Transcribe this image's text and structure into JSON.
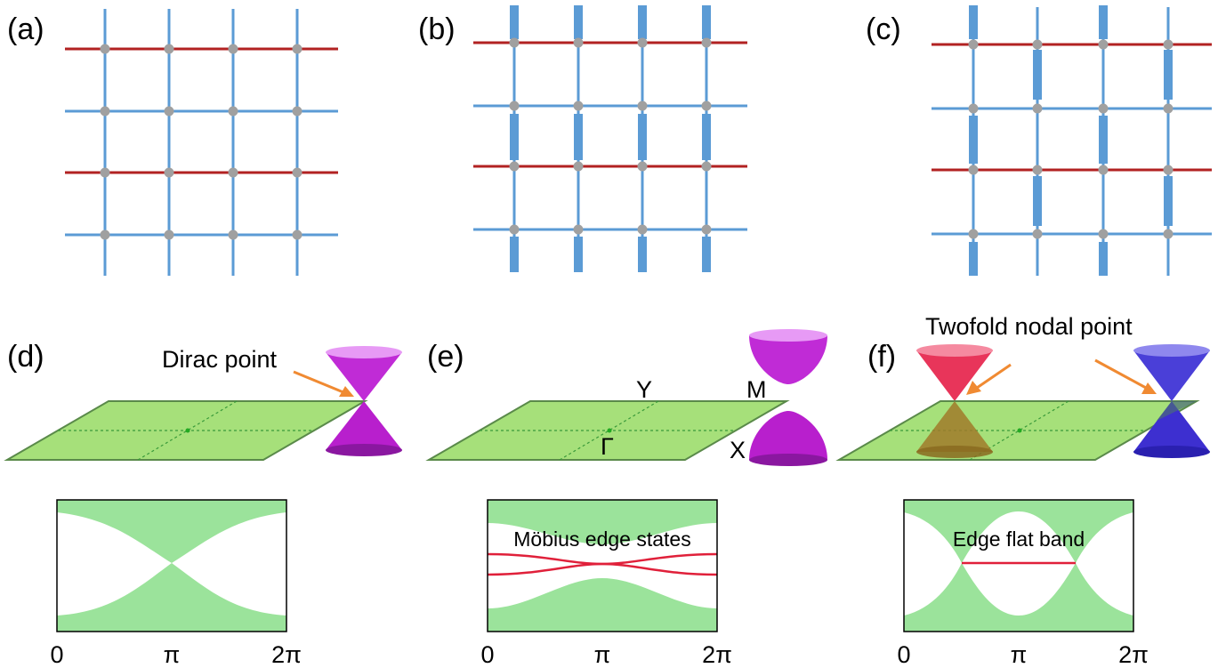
{
  "panels": {
    "a": {
      "label": "(a)"
    },
    "b": {
      "label": "(b)"
    },
    "c": {
      "label": "(c)"
    },
    "d": {
      "label": "(d)",
      "annotation": "Dirac point"
    },
    "e": {
      "label": "(e)",
      "point_Y": "Y",
      "point_M": "M",
      "point_Gamma": "Γ",
      "point_X": "X",
      "band_annotation": "Möbius edge states"
    },
    "f": {
      "label": "(f)",
      "annotation": "Twofold nodal point",
      "band_annotation": "Edge flat band"
    }
  },
  "axis": {
    "tick_0": "0",
    "tick_pi": "π",
    "tick_2pi": "2π"
  },
  "colors": {
    "lattice_bond": "#5b9bd5",
    "red_bond": "#b22222",
    "site": "#a0a0a0",
    "bz_plane": "#a6e07a",
    "cone_magenta": "#c02bd6",
    "cone_red": "#e8355a",
    "cone_blue": "#4a3fd8",
    "band_fill": "#9be39b",
    "edge_state": "#e0203a",
    "arrow": "#f08a32"
  }
}
